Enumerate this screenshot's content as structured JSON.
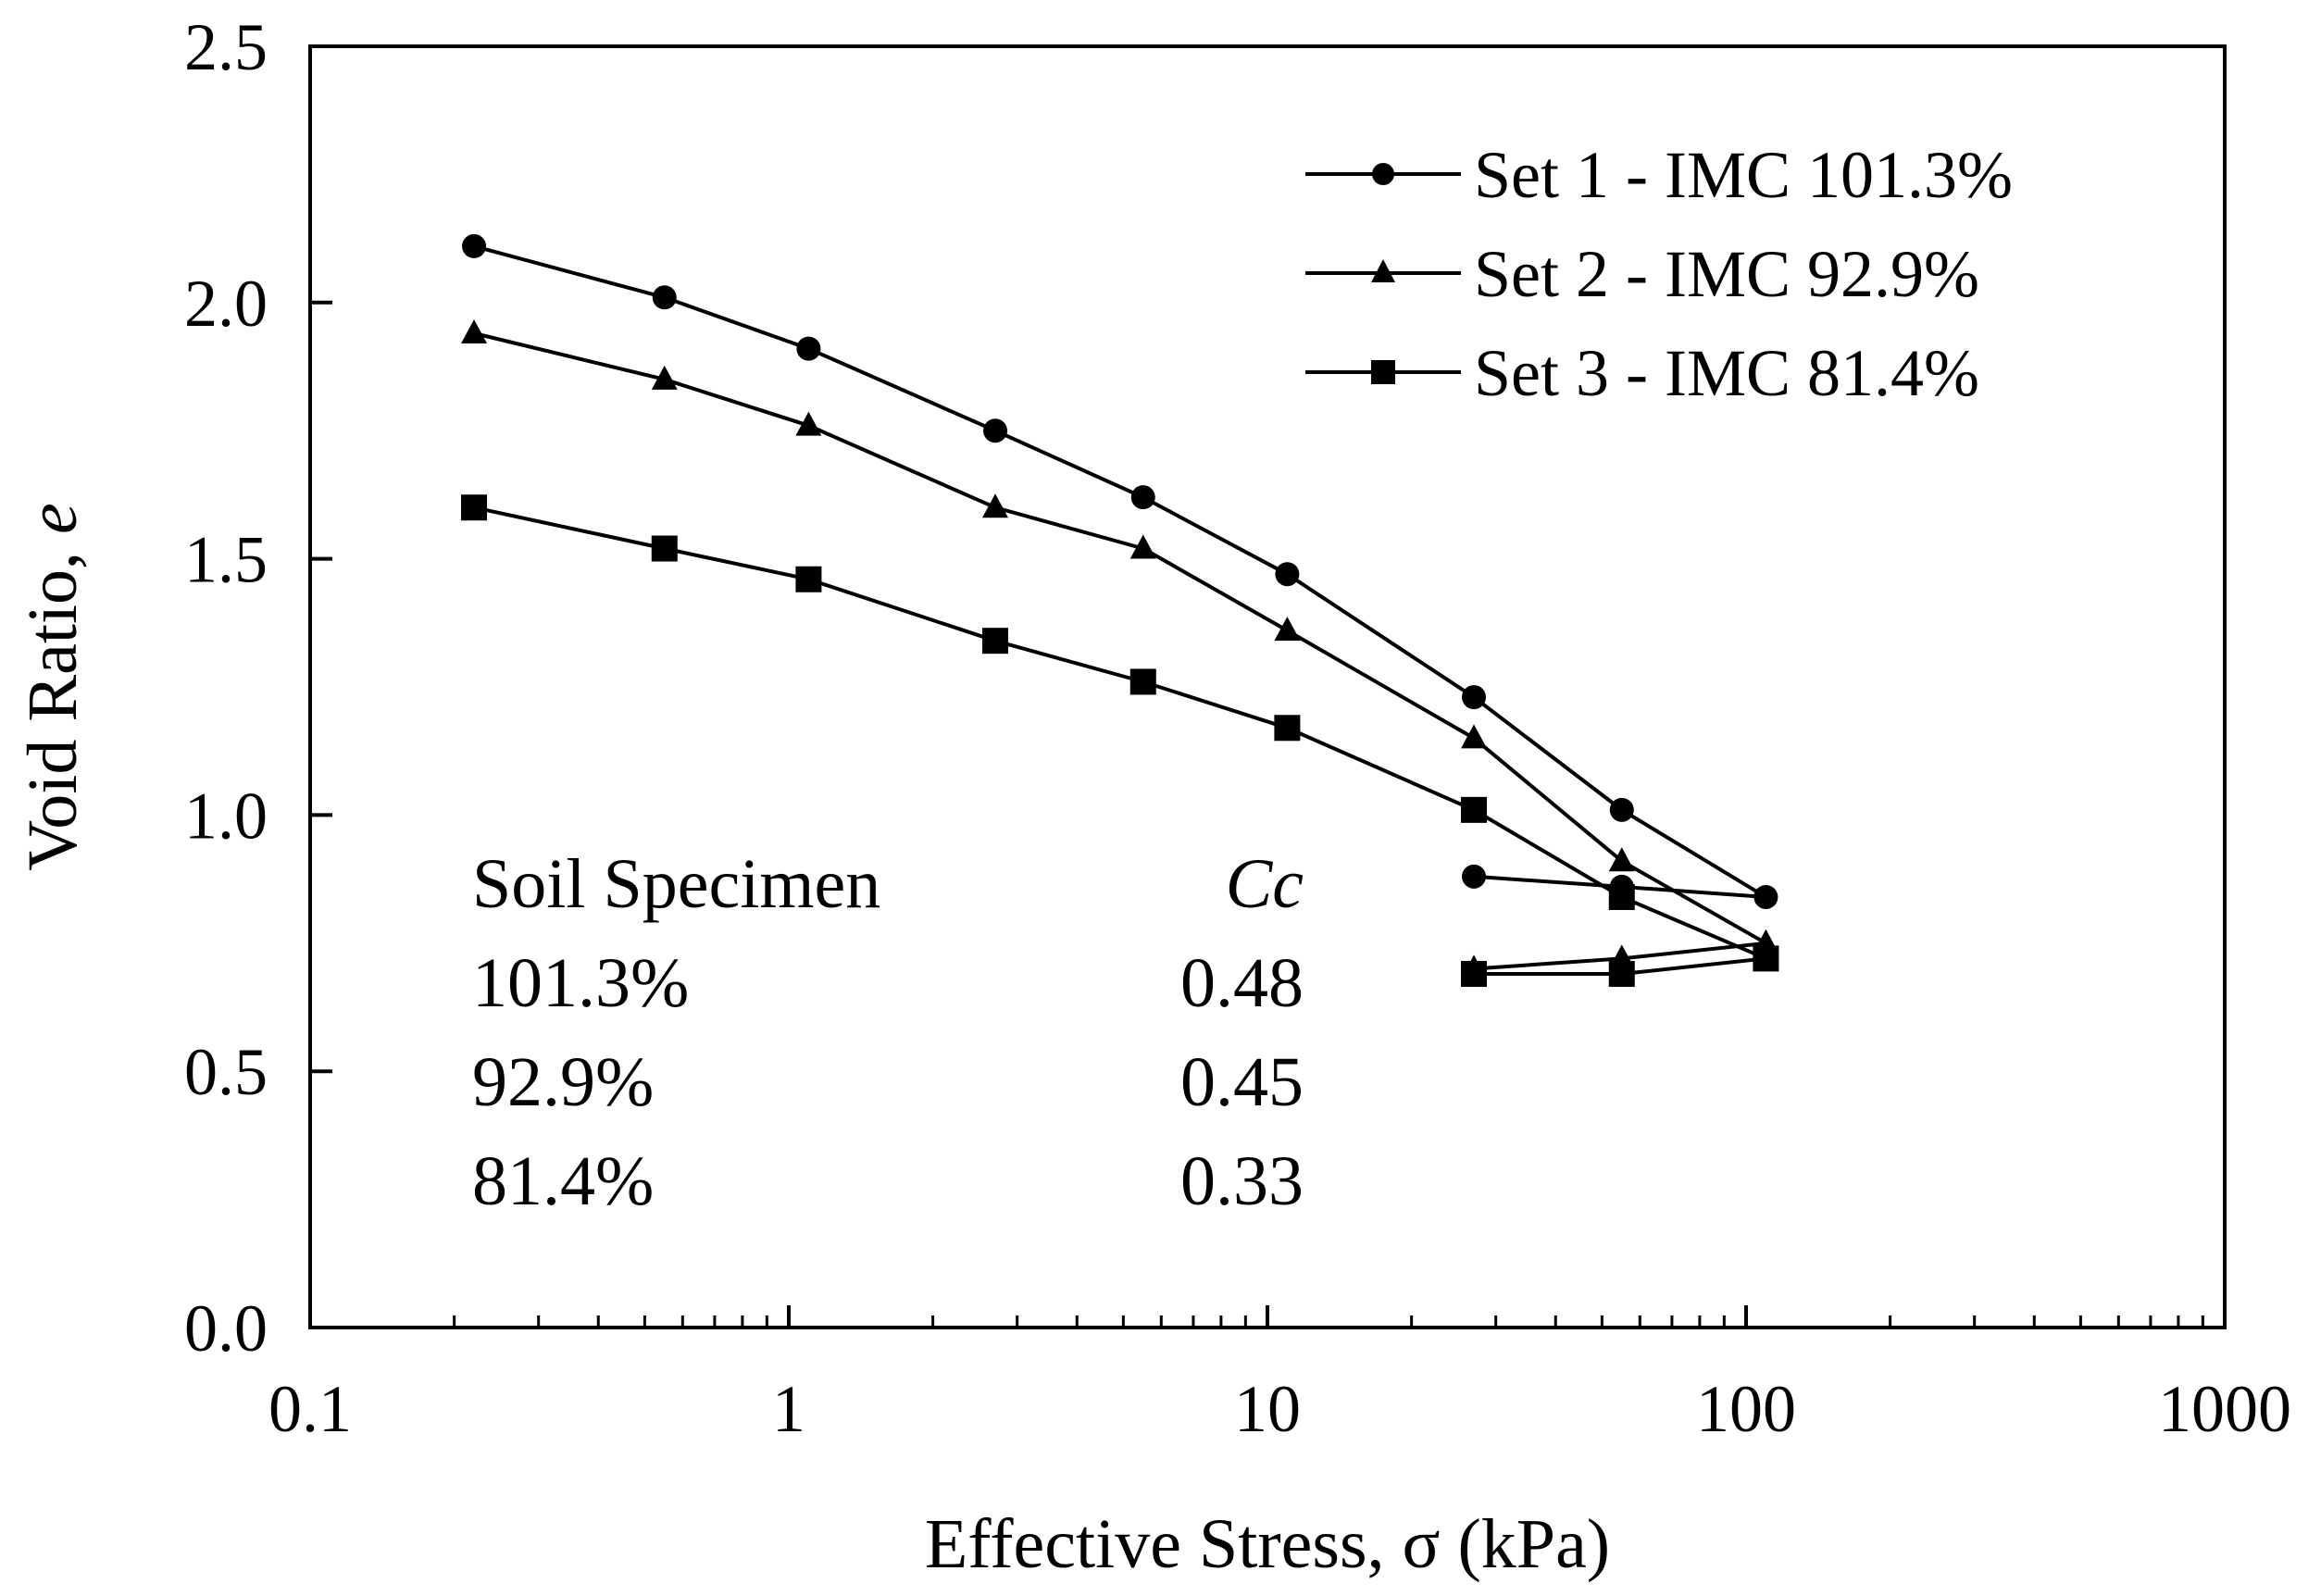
{
  "chart_data": {
    "type": "line",
    "title": "",
    "xlabel": "Effective Stress, σ (kPa)",
    "ylabel_prefix": "Void Ratio, ",
    "ylabel_var": "e",
    "xscale": "log",
    "xlim": [
      0.1,
      1000
    ],
    "ylim": [
      0.0,
      2.5
    ],
    "x_tick_labels": [
      "0.1",
      "1",
      "10",
      "100",
      "1000"
    ],
    "y_tick_labels": [
      "0.0",
      "0.5",
      "1.0",
      "1.5",
      "2.0",
      "2.5"
    ],
    "grid": false,
    "legend_position": "top-right",
    "series": [
      {
        "name": "Set 1 - IMC 101.3%",
        "marker": "circle",
        "x": [
          0.22,
          0.55,
          1.1,
          2.7,
          5.5,
          11,
          27,
          55,
          110,
          55,
          27
        ],
        "y": [
          2.11,
          2.01,
          1.91,
          1.75,
          1.62,
          1.47,
          1.23,
          1.01,
          0.84,
          0.86,
          0.88
        ]
      },
      {
        "name": "Set 2 - IMC 92.9%",
        "marker": "triangle",
        "x": [
          0.22,
          0.55,
          1.1,
          2.7,
          5.5,
          11,
          27,
          55,
          110,
          55,
          27
        ],
        "y": [
          1.94,
          1.85,
          1.76,
          1.6,
          1.52,
          1.36,
          1.15,
          0.91,
          0.75,
          0.72,
          0.7
        ]
      },
      {
        "name": "Set 3 - IMC 81.4%",
        "marker": "square",
        "x": [
          0.22,
          0.55,
          1.1,
          2.7,
          5.5,
          11,
          27,
          55,
          110,
          55,
          27
        ],
        "y": [
          1.6,
          1.52,
          1.46,
          1.34,
          1.26,
          1.17,
          1.01,
          0.84,
          0.72,
          0.69,
          0.69
        ]
      }
    ],
    "annotation": {
      "header_left": "Soil Specimen",
      "header_right": "Cc",
      "rows": [
        {
          "specimen": "101.3%",
          "cc": "0.48"
        },
        {
          "specimen": "92.9%",
          "cc": "0.45"
        },
        {
          "specimen": "81.4%",
          "cc": "0.33"
        }
      ]
    }
  }
}
